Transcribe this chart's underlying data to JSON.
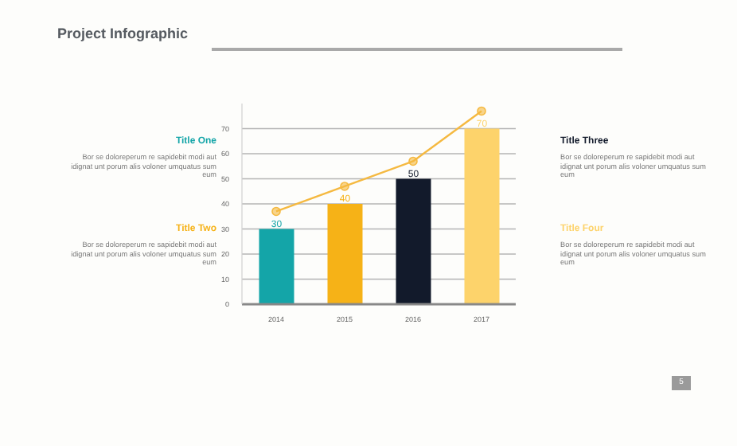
{
  "chart_data": {
    "type": "bar",
    "title": "Project Infographic",
    "categories": [
      "2014",
      "2015",
      "2016",
      "2017"
    ],
    "series": [
      {
        "colors": [
          "#14a5a8",
          "#f6b217",
          "#121a2b",
          "#fdd36b"
        ],
        "values": [
          30,
          40,
          50,
          70
        ],
        "value_labels": [
          "30",
          "40",
          "50",
          "70"
        ]
      },
      {
        "type": "line",
        "color": "#f5b940",
        "values": [
          37,
          47,
          57,
          77
        ]
      }
    ],
    "ylim": [
      0,
      80
    ],
    "yticks": [
      0,
      10,
      20,
      30,
      40,
      50,
      60,
      70
    ],
    "grid": "y",
    "marker": "circle",
    "legend": false,
    "annotations": [
      "Title One",
      "Bor se doloreperum re sapidebit modi aut idignat unt porum alis voloner umquatus sum eum",
      "Title Two",
      "Bor se doloreperum re sapidebit modi aut idignat unt porum alis voloner umquatus sum eum",
      "Title Three",
      "Bor se doloreperum re sapidebit modi aut idignat unt porum alis voloner umquatus sum eum",
      "Title Four",
      "Bor se doloreperum re sapidebit modi aut idignat unt porum alis voloner umquatus sum eum",
      "5"
    ]
  }
}
